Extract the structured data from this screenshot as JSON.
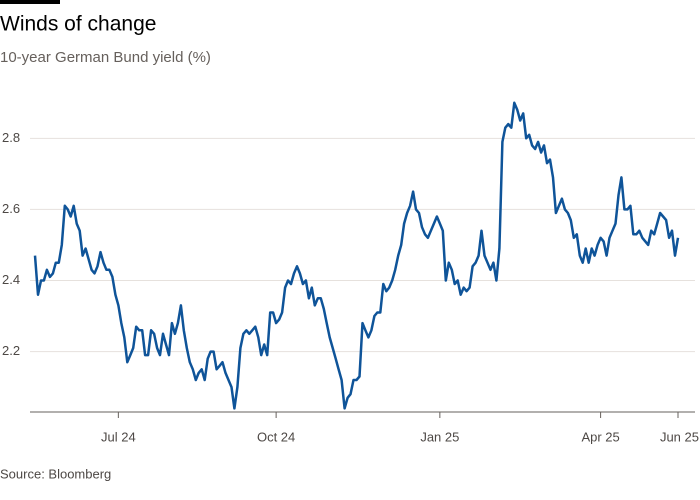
{
  "chart_data": {
    "type": "line",
    "title": "Winds of change",
    "subtitle": "10-year German Bund yield (%)",
    "source": "Source: Bloomberg",
    "series": [
      {
        "name": "10-year German Bund yield",
        "color": "#0f5499",
        "values": [
          2.47,
          2.36,
          2.4,
          2.4,
          2.43,
          2.41,
          2.42,
          2.45,
          2.45,
          2.5,
          2.61,
          2.6,
          2.58,
          2.61,
          2.56,
          2.54,
          2.47,
          2.49,
          2.46,
          2.43,
          2.42,
          2.44,
          2.48,
          2.45,
          2.43,
          2.43,
          2.41,
          2.36,
          2.33,
          2.28,
          2.24,
          2.17,
          2.19,
          2.21,
          2.27,
          2.26,
          2.26,
          2.19,
          2.19,
          2.26,
          2.25,
          2.21,
          2.19,
          2.25,
          2.22,
          2.19,
          2.28,
          2.25,
          2.28,
          2.33,
          2.26,
          2.21,
          2.17,
          2.15,
          2.12,
          2.14,
          2.15,
          2.12,
          2.18,
          2.2,
          2.2,
          2.15,
          2.16,
          2.17,
          2.14,
          2.12,
          2.1,
          2.04,
          2.1,
          2.21,
          2.25,
          2.26,
          2.25,
          2.26,
          2.27,
          2.24,
          2.19,
          2.22,
          2.19,
          2.31,
          2.31,
          2.28,
          2.29,
          2.31,
          2.38,
          2.4,
          2.39,
          2.42,
          2.44,
          2.42,
          2.39,
          2.4,
          2.35,
          2.38,
          2.33,
          2.35,
          2.35,
          2.32,
          2.28,
          2.24,
          2.21,
          2.18,
          2.15,
          2.12,
          2.04,
          2.07,
          2.08,
          2.12,
          2.12,
          2.13,
          2.28,
          2.26,
          2.24,
          2.26,
          2.3,
          2.31,
          2.31,
          2.39,
          2.37,
          2.38,
          2.4,
          2.43,
          2.47,
          2.5,
          2.56,
          2.59,
          2.61,
          2.65,
          2.6,
          2.59,
          2.55,
          2.53,
          2.52,
          2.54,
          2.56,
          2.58,
          2.56,
          2.54,
          2.4,
          2.45,
          2.43,
          2.39,
          2.4,
          2.36,
          2.38,
          2.37,
          2.38,
          2.44,
          2.45,
          2.47,
          2.54,
          2.47,
          2.45,
          2.43,
          2.45,
          2.4,
          2.49,
          2.79,
          2.83,
          2.84,
          2.83,
          2.9,
          2.88,
          2.85,
          2.87,
          2.8,
          2.81,
          2.78,
          2.77,
          2.79,
          2.76,
          2.78,
          2.73,
          2.74,
          2.69,
          2.59,
          2.61,
          2.63,
          2.6,
          2.59,
          2.57,
          2.52,
          2.53,
          2.47,
          2.45,
          2.49,
          2.45,
          2.49,
          2.47,
          2.5,
          2.52,
          2.51,
          2.47,
          2.52,
          2.54,
          2.56,
          2.64,
          2.69,
          2.6,
          2.6,
          2.61,
          2.53,
          2.53,
          2.54,
          2.52,
          2.51,
          2.5,
          2.54,
          2.53,
          2.56,
          2.59,
          2.58,
          2.57,
          2.52,
          2.54,
          2.47,
          2.52
        ]
      }
    ],
    "xlim": [
      0,
      216
    ],
    "xticks": [
      {
        "value": 28,
        "label": "Jul 24"
      },
      {
        "value": 81,
        "label": "Oct 24"
      },
      {
        "value": 136,
        "label": "Jan 25"
      },
      {
        "value": 190,
        "label": "Apr 25"
      },
      {
        "value": 216,
        "label": "Jun 25"
      }
    ],
    "ylim": [
      2.03,
      2.95
    ],
    "yticks": [
      2.2,
      2.4,
      2.6,
      2.8
    ],
    "grid": true
  }
}
